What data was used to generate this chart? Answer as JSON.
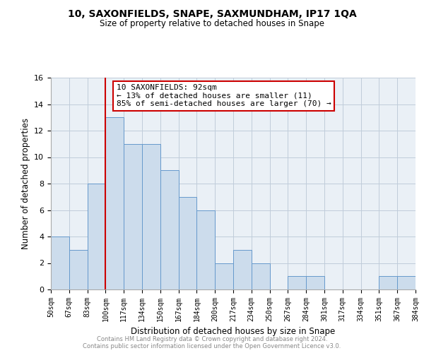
{
  "title1": "10, SAXONFIELDS, SNAPE, SAXMUNDHAM, IP17 1QA",
  "title2": "Size of property relative to detached houses in Snape",
  "xlabel": "Distribution of detached houses by size in Snape",
  "ylabel": "Number of detached properties",
  "bin_labels": [
    "50sqm",
    "67sqm",
    "83sqm",
    "100sqm",
    "117sqm",
    "134sqm",
    "150sqm",
    "167sqm",
    "184sqm",
    "200sqm",
    "217sqm",
    "234sqm",
    "250sqm",
    "267sqm",
    "284sqm",
    "301sqm",
    "317sqm",
    "334sqm",
    "351sqm",
    "367sqm",
    "384sqm"
  ],
  "bar_values": [
    4,
    3,
    8,
    13,
    11,
    11,
    9,
    7,
    6,
    2,
    3,
    2,
    0,
    1,
    1,
    0,
    0,
    0,
    1,
    1,
    0
  ],
  "bar_color": "#ccdcec",
  "bar_edge_color": "#6699cc",
  "annotation_line1": "10 SAXONFIELDS: 92sqm",
  "annotation_line2": "← 13% of detached houses are smaller (11)",
  "annotation_line3": "85% of semi-detached houses are larger (70) →",
  "annotation_box_edge": "#cc0000",
  "vline_x_index": 3,
  "vline_color": "#cc0000",
  "ylim": [
    0,
    16
  ],
  "yticks": [
    0,
    2,
    4,
    6,
    8,
    10,
    12,
    14,
    16
  ],
  "footer_line1": "Contains HM Land Registry data © Crown copyright and database right 2024.",
  "footer_line2": "Contains public sector information licensed under the Open Government Licence v3.0.",
  "footer_color": "#888888",
  "background_color": "#eaf0f6",
  "grid_color": "#c0ccda"
}
